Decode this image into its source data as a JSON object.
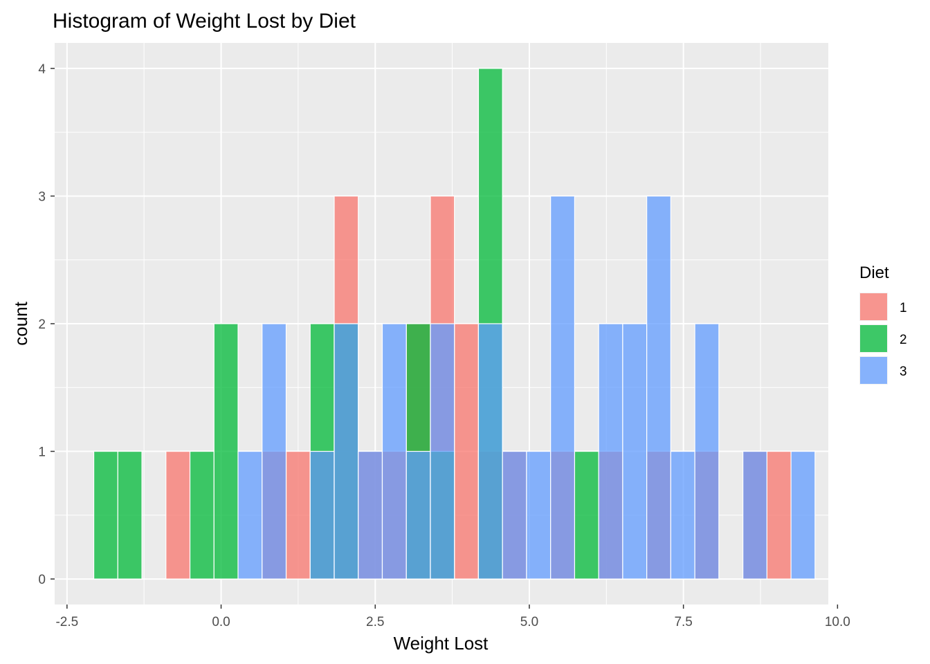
{
  "chart_data": {
    "type": "histogram",
    "title": "Histogram of Weight Lost by Diet",
    "xlabel": "Weight Lost",
    "ylabel": "count",
    "xlim": [
      -2.7,
      9.85
    ],
    "ylim": [
      -0.2,
      4.2
    ],
    "x_ticks": [
      -2.5,
      0.0,
      2.5,
      5.0,
      7.5,
      10.0
    ],
    "x_tick_labels": [
      "-2.5",
      "0.0",
      "2.5",
      "5.0",
      "7.5",
      "10.0"
    ],
    "y_ticks": [
      0,
      1,
      2,
      3,
      4
    ],
    "y_tick_labels": [
      "0",
      "1",
      "2",
      "3",
      "4"
    ],
    "position": "identity",
    "opacity": 0.75,
    "grid": true,
    "legend": {
      "title": "Diet",
      "placement": "right"
    },
    "bin_width": 0.39,
    "bin_centers": [
      -1.87,
      -1.48,
      -0.7,
      -0.31,
      0.08,
      0.47,
      0.86,
      1.25,
      1.64,
      2.03,
      2.42,
      2.81,
      3.2,
      3.59,
      3.98,
      4.37,
      4.76,
      5.15,
      5.54,
      5.93,
      6.32,
      6.71,
      7.1,
      7.49,
      7.88,
      8.66,
      9.05,
      9.44
    ],
    "series": [
      {
        "name": "1",
        "color": "#F8766D",
        "values": [
          0,
          0,
          1,
          0,
          0,
          0,
          1,
          1,
          1,
          3,
          1,
          1,
          2,
          3,
          2,
          1,
          1,
          0,
          1,
          0,
          1,
          0,
          1,
          0,
          1,
          1,
          1,
          0
        ]
      },
      {
        "name": "2",
        "color": "#00BA38",
        "values": [
          1,
          1,
          0,
          1,
          2,
          0,
          0,
          0,
          2,
          2,
          0,
          0,
          2,
          1,
          0,
          4,
          0,
          0,
          0,
          1,
          0,
          0,
          0,
          0,
          0,
          0,
          0,
          0
        ]
      },
      {
        "name": "3",
        "color": "#619CFF",
        "values": [
          0,
          0,
          0,
          0,
          0,
          1,
          2,
          0,
          1,
          2,
          1,
          2,
          1,
          2,
          0,
          2,
          1,
          1,
          3,
          0,
          2,
          2,
          3,
          1,
          2,
          1,
          0,
          1
        ]
      }
    ]
  }
}
